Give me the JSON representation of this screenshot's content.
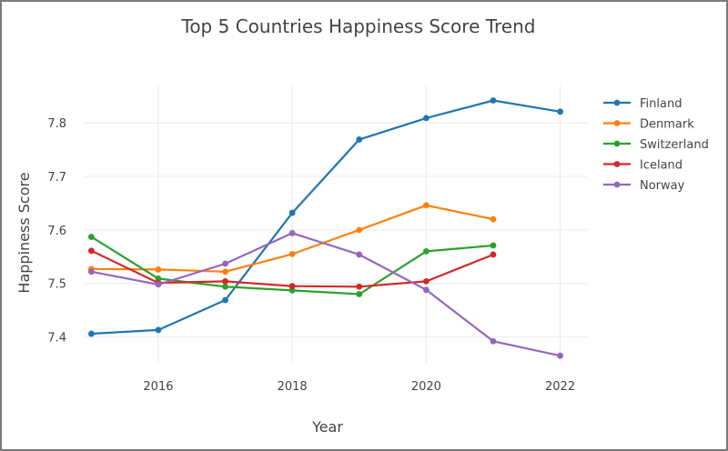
{
  "chart_data": {
    "type": "line",
    "title": "Top 5 Countries Happiness Score Trend",
    "xlabel": "Year",
    "ylabel": "Happiness Score",
    "xlim": [
      2014.9,
      2022.4
    ],
    "ylim": [
      7.35,
      7.87
    ],
    "x_ticks": [
      2016,
      2018,
      2020,
      2022
    ],
    "y_ticks": [
      7.4,
      7.5,
      7.6,
      7.7,
      7.8
    ],
    "grid": true,
    "legend_position": "right",
    "series": [
      {
        "name": "Finland",
        "color": "#1f77b4",
        "x": [
          2015,
          2016,
          2017,
          2018,
          2019,
          2020,
          2021,
          2022
        ],
        "y": [
          7.406,
          7.413,
          7.469,
          7.632,
          7.769,
          7.809,
          7.842,
          7.821
        ]
      },
      {
        "name": "Denmark",
        "color": "#ff7f0e",
        "x": [
          2015,
          2016,
          2017,
          2018,
          2019,
          2020,
          2021
        ],
        "y": [
          7.527,
          7.526,
          7.522,
          7.555,
          7.6,
          7.646,
          7.62
        ]
      },
      {
        "name": "Switzerland",
        "color": "#2ca02c",
        "x": [
          2015,
          2016,
          2017,
          2018,
          2019,
          2020,
          2021
        ],
        "y": [
          7.587,
          7.509,
          7.494,
          7.487,
          7.48,
          7.56,
          7.571
        ]
      },
      {
        "name": "Iceland",
        "color": "#d62728",
        "x": [
          2015,
          2016,
          2017,
          2018,
          2019,
          2020,
          2021
        ],
        "y": [
          7.561,
          7.501,
          7.504,
          7.495,
          7.494,
          7.504,
          7.554
        ]
      },
      {
        "name": "Norway",
        "color": "#9467bd",
        "x": [
          2015,
          2016,
          2017,
          2018,
          2019,
          2020,
          2021,
          2022
        ],
        "y": [
          7.522,
          7.498,
          7.537,
          7.594,
          7.554,
          7.488,
          7.392,
          7.365
        ]
      }
    ]
  }
}
